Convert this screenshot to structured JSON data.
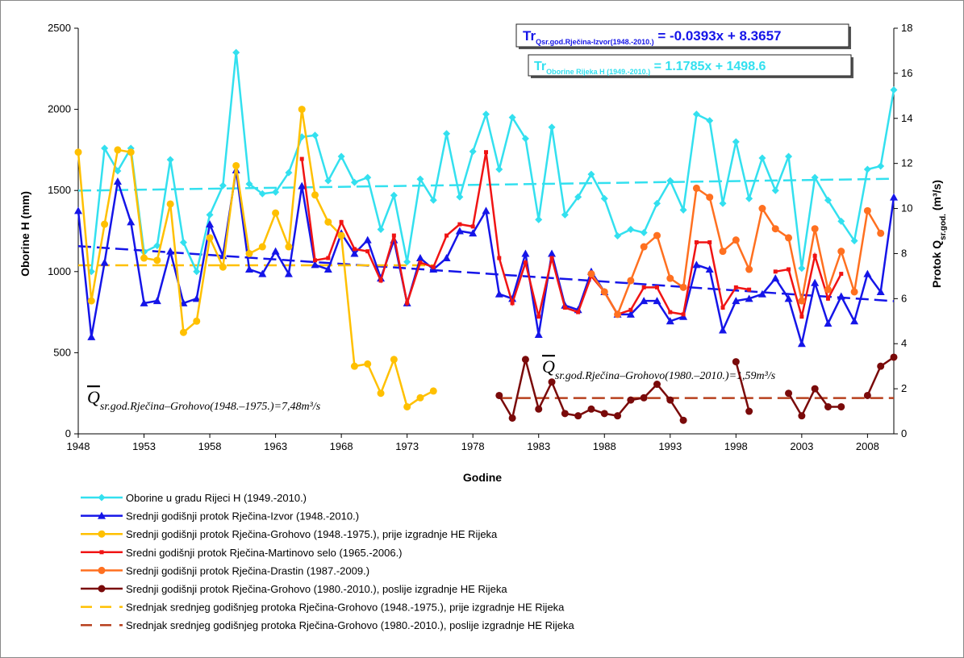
{
  "chart_data": {
    "type": "line",
    "xlabel": "Godine",
    "ylabel": "Oborine H (mm)",
    "y2label": {
      "main": "Protok Q",
      "sub": "sr.god.",
      "unit": " (m³/s)"
    },
    "xlim": [
      1948,
      2010
    ],
    "xticks": [
      1948,
      1953,
      1958,
      1963,
      1968,
      1973,
      1978,
      1983,
      1988,
      1993,
      1998,
      2003,
      2008
    ],
    "ylim": [
      0,
      2500
    ],
    "yticks": [
      0,
      500,
      1000,
      1500,
      2000,
      2500
    ],
    "y2lim": [
      0,
      18
    ],
    "y2ticks": [
      0,
      2,
      4,
      6,
      8,
      10,
      12,
      14,
      16,
      18
    ],
    "x": [
      1948,
      1949,
      1950,
      1951,
      1952,
      1953,
      1954,
      1955,
      1956,
      1957,
      1958,
      1959,
      1960,
      1961,
      1962,
      1963,
      1964,
      1965,
      1966,
      1967,
      1968,
      1969,
      1970,
      1971,
      1972,
      1973,
      1974,
      1975,
      1976,
      1977,
      1978,
      1979,
      1980,
      1981,
      1982,
      1983,
      1984,
      1985,
      1986,
      1987,
      1988,
      1989,
      1990,
      1991,
      1992,
      1993,
      1994,
      1995,
      1996,
      1997,
      1998,
      1999,
      2000,
      2001,
      2002,
      2003,
      2004,
      2005,
      2006,
      2007,
      2008,
      2009,
      2010
    ],
    "series": [
      {
        "name": "Oborine u gradu Rijeci H (1949.-2010.)",
        "color": "#33e0ef",
        "marker": "diamond",
        "axis": "y",
        "values": [
          null,
          1000,
          1760,
          1620,
          1760,
          1120,
          1160,
          1690,
          1180,
          1000,
          1350,
          1530,
          2350,
          1540,
          1480,
          1490,
          1610,
          1830,
          1840,
          1560,
          1710,
          1550,
          1580,
          1260,
          1470,
          1060,
          1570,
          1440,
          1850,
          1460,
          1740,
          1970,
          1630,
          1950,
          1820,
          1320,
          1890,
          1350,
          1460,
          1600,
          1450,
          1220,
          1260,
          1240,
          1420,
          1560,
          1380,
          1970,
          1930,
          1420,
          1800,
          1450,
          1700,
          1500,
          1710,
          1020,
          1580,
          1440,
          1310,
          1190,
          1630,
          1650,
          2120
        ]
      },
      {
        "name": "Srednji godišnji protok Rječina-Izvor (1948.-2010.)",
        "color": "#1515e8",
        "marker": "triangle",
        "axis": "y2",
        "values": [
          9.9,
          4.3,
          7.6,
          11.2,
          9.4,
          5.8,
          5.9,
          8.1,
          5.8,
          6.0,
          9.3,
          7.9,
          11.7,
          7.3,
          7.1,
          8.1,
          7.1,
          11.0,
          7.5,
          7.3,
          8.9,
          8.0,
          8.6,
          6.9,
          8.6,
          5.8,
          7.8,
          7.3,
          7.8,
          9.0,
          8.9,
          9.9,
          6.2,
          6.0,
          8.0,
          4.4,
          8.0,
          5.7,
          5.5,
          7.2,
          6.3,
          5.3,
          5.3,
          5.9,
          5.9,
          5.0,
          5.2,
          7.5,
          7.3,
          4.6,
          5.9,
          6.0,
          6.2,
          6.9,
          6.0,
          4.0,
          6.7,
          4.9,
          6.1,
          5.0,
          7.1,
          6.3,
          10.5
        ]
      },
      {
        "name": "Srednji godišnji protok Rječina-Grohovo (1948.-1975.), prije izgradnje HE Rijeka",
        "color": "#ffc000",
        "marker": "circle",
        "axis": "y2",
        "values": [
          12.5,
          5.9,
          9.3,
          12.6,
          12.5,
          7.8,
          7.7,
          10.2,
          4.5,
          5.0,
          8.7,
          7.4,
          11.9,
          8.0,
          8.3,
          9.8,
          8.3,
          14.4,
          10.6,
          9.4,
          8.8,
          3.0,
          3.1,
          1.8,
          3.3,
          1.2,
          1.6,
          1.9,
          null,
          null,
          null,
          null,
          null,
          null,
          null,
          null,
          null,
          null,
          null,
          null,
          null,
          null,
          null,
          null,
          null,
          null,
          null,
          null,
          null,
          null,
          null,
          null,
          null,
          null,
          null,
          null,
          null,
          null,
          null,
          null,
          null,
          null,
          null
        ]
      },
      {
        "name": "Sredni godišnji protok Rječina-Martinovo selo (1965.-2006.)",
        "color": "#f01414",
        "marker": "square",
        "axis": "y2",
        "values": [
          null,
          null,
          null,
          null,
          null,
          null,
          null,
          null,
          null,
          null,
          null,
          null,
          null,
          null,
          null,
          null,
          null,
          12.2,
          7.7,
          7.8,
          9.4,
          8.2,
          8.1,
          6.8,
          8.8,
          5.8,
          7.6,
          7.4,
          8.8,
          9.3,
          9.2,
          12.5,
          7.8,
          5.8,
          7.6,
          5.2,
          7.8,
          5.6,
          5.4,
          7.0,
          6.3,
          5.3,
          5.5,
          6.5,
          6.5,
          5.4,
          5.3,
          8.5,
          8.5,
          5.6,
          6.5,
          6.4,
          null,
          7.2,
          7.3,
          5.2,
          7.9,
          6.0,
          7.1,
          null,
          null,
          null,
          null
        ]
      },
      {
        "name": "Srednji godišnji protok Rječina-Drastin (1987.-2009.)",
        "color": "#ff7020",
        "marker": "circle",
        "axis": "y2",
        "values": [
          null,
          null,
          null,
          null,
          null,
          null,
          null,
          null,
          null,
          null,
          null,
          null,
          null,
          null,
          null,
          null,
          null,
          null,
          null,
          null,
          null,
          null,
          null,
          null,
          null,
          null,
          null,
          null,
          null,
          null,
          null,
          null,
          null,
          null,
          null,
          null,
          null,
          null,
          null,
          7.1,
          6.3,
          5.3,
          6.8,
          8.3,
          8.8,
          6.9,
          6.5,
          10.9,
          10.5,
          8.1,
          8.6,
          7.3,
          10.0,
          9.1,
          8.7,
          5.9,
          9.1,
          6.4,
          8.1,
          6.3,
          9.9,
          8.9,
          null
        ]
      },
      {
        "name": "Srednji godišnji protok Rječina-Grohovo (1980.-2010.), poslije izgradnje HE Rijeka",
        "color": "#7a0a0a",
        "marker": "circle",
        "axis": "y2",
        "values": [
          null,
          null,
          null,
          null,
          null,
          null,
          null,
          null,
          null,
          null,
          null,
          null,
          null,
          null,
          null,
          null,
          null,
          null,
          null,
          null,
          null,
          null,
          null,
          null,
          null,
          null,
          null,
          null,
          null,
          null,
          null,
          null,
          1.7,
          0.7,
          3.3,
          1.1,
          2.3,
          0.9,
          0.8,
          1.1,
          0.9,
          0.8,
          1.5,
          1.6,
          2.2,
          1.5,
          0.6,
          null,
          null,
          null,
          3.2,
          1.0,
          null,
          null,
          1.8,
          0.8,
          2.0,
          1.2,
          1.2,
          null,
          1.7,
          3.0,
          3.4
        ]
      }
    ],
    "mean_lines": [
      {
        "name": "Srednjak srednjeg godišnjeg protoka Rječina-Grohovo (1948.-1975.), prije izgradnje HE Rijeka",
        "color": "#ffc000",
        "axis": "y2",
        "x": [
          1948,
          1975
        ],
        "value": 7.48
      },
      {
        "name": "Srednjak srednjeg godišnjeg protoka Rječina-Grohovo (1980.-2010.), poslije izgradnje HE Rijeka",
        "color": "#b8401e",
        "axis": "y2",
        "x": [
          1980,
          2010
        ],
        "value": 1.59
      }
    ],
    "trend_lines": [
      {
        "color": "#33e0ef",
        "axis": "y",
        "x": [
          1948,
          2010
        ],
        "values": [
          1499,
          1572
        ]
      },
      {
        "color": "#1515e8",
        "axis": "y2",
        "x": [
          1948,
          2010
        ],
        "values": [
          8.33,
          5.89
        ]
      }
    ],
    "equations": [
      {
        "main": "Tr",
        "sub": "Qsr.god.Rječina-Izvor(1948.-2010.)",
        "rest": " = -0.0393x + 8.3657"
      },
      {
        "main": "Tr",
        "sub": "Oborine Rijeka H (1949.-2010.)",
        "rest": " = 1.1785x + 1498.6"
      }
    ],
    "mean_labels": [
      {
        "symbol": "Q",
        "text": "sr.god.Rječina–Grohovo(1948.–1975.)=7,48m³/s"
      },
      {
        "symbol": "Q",
        "text": "sr.god.Rječina–Grohovo(1980.–2010.)=1,59m³/s"
      }
    ]
  }
}
